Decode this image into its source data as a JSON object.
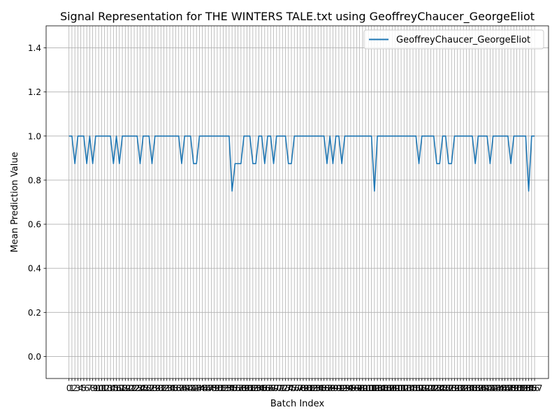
{
  "chart_data": {
    "type": "line",
    "title": "Signal Representation for THE WINTERS TALE.txt using GeoffreyChaucer_GeorgeEliot",
    "xlabel": "Batch Index",
    "ylabel": "Mean Prediction Value",
    "xlim": [
      -7.7,
      161.7
    ],
    "ylim": [
      -0.1,
      1.5
    ],
    "yticks": [
      0.0,
      0.2,
      0.4,
      0.6,
      0.8,
      1.0,
      1.2,
      1.4
    ],
    "ytick_labels": [
      "0.0",
      "0.2",
      "0.4",
      "0.6",
      "0.8",
      "1.0",
      "1.2",
      "1.4"
    ],
    "xticks_note": "one tick per batch index, labels overlap",
    "grid": true,
    "legend_position": "top-right",
    "line_color": "#1f77b4",
    "series": [
      {
        "name": "GeoffreyChaucer_GeorgeEliot",
        "values": [
          1,
          1,
          0.875,
          1,
          1,
          1,
          0.875,
          1,
          0.875,
          1,
          1,
          1,
          1,
          1,
          1,
          0.875,
          1,
          0.875,
          1,
          1,
          1,
          1,
          1,
          1,
          0.875,
          1,
          1,
          1,
          0.875,
          1,
          1,
          1,
          1,
          1,
          1,
          1,
          1,
          1,
          0.875,
          1,
          1,
          1,
          0.875,
          0.875,
          1,
          1,
          1,
          1,
          1,
          1,
          1,
          1,
          1,
          1,
          1,
          0.75,
          0.875,
          0.875,
          0.875,
          1,
          1,
          1,
          0.875,
          0.875,
          1,
          1,
          0.875,
          1,
          1,
          0.875,
          1,
          1,
          1,
          1,
          0.875,
          0.875,
          1,
          1,
          1,
          1,
          1,
          1,
          1,
          1,
          1,
          1,
          1,
          0.875,
          1,
          0.875,
          1,
          1,
          0.875,
          1,
          1,
          1,
          1,
          1,
          1,
          1,
          1,
          1,
          1,
          0.75,
          1,
          1,
          1,
          1,
          1,
          1,
          1,
          1,
          1,
          1,
          1,
          1,
          1,
          1,
          0.875,
          1,
          1,
          1,
          1,
          1,
          0.875,
          0.875,
          1,
          1,
          0.875,
          0.875,
          1,
          1,
          1,
          1,
          1,
          1,
          1,
          0.875,
          1,
          1,
          1,
          1,
          0.875,
          1,
          1,
          1,
          1,
          1,
          1,
          0.875,
          1,
          1,
          1,
          1,
          1,
          0.75,
          1,
          1
        ]
      }
    ]
  }
}
